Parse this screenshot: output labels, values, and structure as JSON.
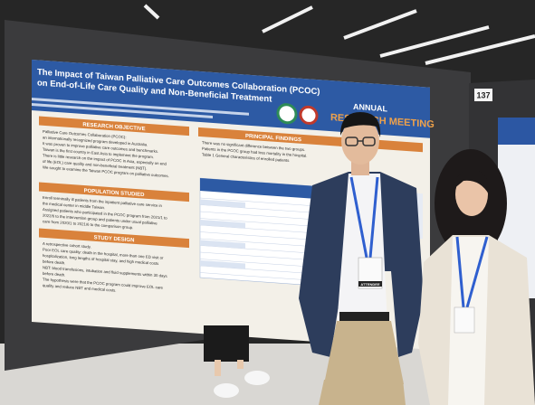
{
  "poster": {
    "title_lines": [
      "The Impact of Taiwan Palliative Care Outcomes Collaboration (PCOC)",
      "on End-of-Life Care Quality and Non-Beneficial Treatment"
    ],
    "event": [
      "ANNUAL",
      "RESEARCH MEETING"
    ],
    "sections": [
      {
        "heading": "RESEARCH OBJECTIVE",
        "lines": [
          "Palliative Care Outcomes Collaboration (PCOC):",
          "an internationally recognized program developed in Australia.",
          "It was proven to improve palliative care outcomes and benchmarks.",
          "Taiwan is the first country in East Asia to implement the program.",
          "There is little research on the impact of PCOC in Asia, especially on end",
          "of life (EOL) care quality and non-beneficial treatment (NBT).",
          "We sought to examine the Taiwan PCOC program on palliative outcomes."
        ]
      },
      {
        "heading": "POPULATION STUDIED",
        "lines": [
          "Enroll terminally ill patients from the inpatient palliative care service in",
          "the medical center in middle Taiwan.",
          "Assigned patients who participated in the PCOC program from 2021/1 to",
          "2022/6 to the intervention group and patients under usual palliative",
          "care from 2020/1 to 2021/6 to the comparison group."
        ]
      },
      {
        "heading": "STUDY DESIGN",
        "lines": [
          "A retrospective cohort study.",
          "Poor EOL care quality: death in the hospital, more than one ED visit or",
          "hospitalization, long lengths of hospital stay, and high medical costs",
          "before death.",
          "NBT: blood transfusions, intubation and fluid supplements within 30 days",
          "before death.",
          "The hypothesis were that the PCOC program could improve EOL care",
          "quality and reduce NBT and medical costs."
        ]
      },
      {
        "heading": "PRINCIPAL FINDINGS",
        "lines": [
          "There was no significant difference between the two groups.",
          "Patients in the PCOC group had less mortality in the hospital.",
          "Table 1 General characteristics of enrolled patients"
        ]
      }
    ]
  },
  "booth_number": "137",
  "badge": "ATTENDEE"
}
